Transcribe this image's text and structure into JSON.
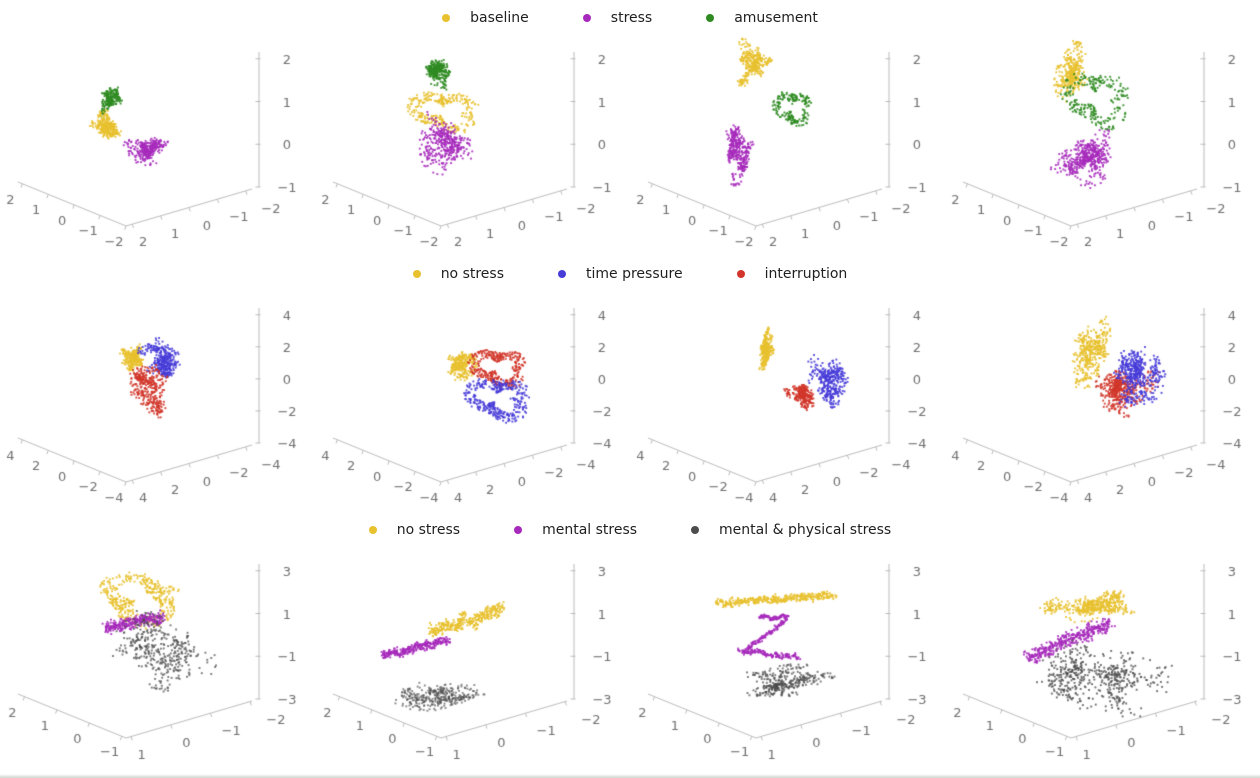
{
  "figure": {
    "background": "#ffffff",
    "axis_line_color": "#bbbbbb",
    "tick_label_color": "#707070",
    "legend_text_color": "#1f1f1f"
  },
  "chart_data": {
    "type": "scatter",
    "projection": "3d",
    "grid": {
      "rows": 3,
      "cols": 4
    },
    "description": "Three rows of four 3D scatter subplots; each row shares one centered legend and identical axis ranges.",
    "rows": [
      {
        "legend": {
          "position": "top-center",
          "entries": [
            {
              "label": "baseline",
              "color": "#E8C12F"
            },
            {
              "label": "stress",
              "color": "#A62ABB"
            },
            {
              "label": "amusement",
              "color": "#2F8B21"
            }
          ]
        },
        "axes": {
          "x_range": [
            -2,
            2
          ],
          "y_range": [
            -2,
            2
          ],
          "z_range": [
            -1,
            2
          ],
          "x_ticks": [
            "2",
            "1",
            "0",
            "−1",
            "−2"
          ],
          "y_ticks": [
            "2",
            "1",
            "0",
            "−1",
            "−2"
          ],
          "z_ticks": [
            "2",
            "1",
            "0",
            "−1"
          ]
        },
        "subplots": [
          {
            "clusters": [
              {
                "series": 2,
                "type": "walk",
                "cx": 112,
                "cy": 64,
                "sx": 11,
                "sy": 20,
                "rot": 10,
                "n": 220
              },
              {
                "series": 0,
                "type": "walk",
                "cx": 108,
                "cy": 88,
                "sx": 18,
                "sy": 17,
                "rot": 0,
                "n": 300
              },
              {
                "series": 1,
                "type": "walk",
                "cx": 142,
                "cy": 115,
                "sx": 26,
                "sy": 17,
                "rot": 18,
                "n": 300
              }
            ]
          },
          {
            "clusters": [
              {
                "series": 2,
                "type": "walk",
                "cx": 120,
                "cy": 38,
                "sx": 22,
                "sy": 18,
                "rot": -15,
                "n": 260
              },
              {
                "series": 0,
                "type": "ring",
                "cx": 128,
                "cy": 75,
                "sx": 30,
                "sy": 24,
                "rot": 0,
                "n": 280
              },
              {
                "series": 1,
                "type": "walk",
                "cx": 132,
                "cy": 112,
                "sx": 30,
                "sy": 36,
                "rot": 0,
                "n": 380
              }
            ]
          },
          {
            "clusters": [
              {
                "series": 0,
                "type": "walk",
                "cx": 122,
                "cy": 34,
                "sx": 22,
                "sy": 28,
                "rot": 15,
                "n": 320
              },
              {
                "series": 2,
                "type": "ring",
                "cx": 162,
                "cy": 72,
                "sx": 16,
                "sy": 20,
                "rot": 0,
                "n": 180
              },
              {
                "series": 1,
                "type": "walk",
                "cx": 110,
                "cy": 110,
                "sx": 17,
                "sy": 40,
                "rot": 8,
                "n": 340
              }
            ]
          },
          {
            "clusters": [
              {
                "series": 0,
                "type": "walk",
                "cx": 124,
                "cy": 45,
                "sx": 21,
                "sy": 40,
                "rot": 0,
                "n": 340
              },
              {
                "series": 2,
                "type": "ring",
                "cx": 150,
                "cy": 62,
                "sx": 28,
                "sy": 32,
                "rot": 0,
                "n": 240
              },
              {
                "series": 1,
                "type": "walk",
                "cx": 140,
                "cy": 114,
                "sx": 42,
                "sy": 38,
                "rot": 0,
                "n": 450
              }
            ]
          }
        ]
      },
      {
        "legend": {
          "position": "top-center",
          "entries": [
            {
              "label": "no stress",
              "color": "#E8C12F"
            },
            {
              "label": "time pressure",
              "color": "#473CD8"
            },
            {
              "label": "interruption",
              "color": "#D2362A"
            }
          ]
        },
        "axes": {
          "x_range": [
            -4,
            4
          ],
          "y_range": [
            -4,
            4
          ],
          "z_range": [
            -4,
            4
          ],
          "x_ticks": [
            "4",
            "2",
            "0",
            "−2",
            "−4"
          ],
          "y_ticks": [
            "4",
            "2",
            "0",
            "−2",
            "−4"
          ],
          "z_ticks": [
            "4",
            "2",
            "0",
            "−2",
            "−4"
          ]
        },
        "subplots": [
          {
            "clusters": [
              {
                "series": 0,
                "type": "walk",
                "cx": 136,
                "cy": 68,
                "sx": 16,
                "sy": 24,
                "rot": 0,
                "n": 280
              },
              {
                "series": 1,
                "type": "walk",
                "cx": 162,
                "cy": 70,
                "sx": 28,
                "sy": 24,
                "rot": 0,
                "n": 340
              },
              {
                "series": 2,
                "type": "walk",
                "cx": 145,
                "cy": 100,
                "sx": 24,
                "sy": 27,
                "rot": 0,
                "n": 340
              }
            ]
          },
          {
            "clusters": [
              {
                "series": 0,
                "type": "walk",
                "cx": 142,
                "cy": 74,
                "sx": 20,
                "sy": 21,
                "rot": 0,
                "n": 280
              },
              {
                "series": 2,
                "type": "ring",
                "cx": 182,
                "cy": 75,
                "sx": 24,
                "sy": 22,
                "rot": 0,
                "n": 320
              },
              {
                "series": 1,
                "type": "ring",
                "cx": 182,
                "cy": 106,
                "sx": 27,
                "sy": 25,
                "rot": 0,
                "n": 340
              }
            ]
          },
          {
            "clusters": [
              {
                "series": 0,
                "type": "walk",
                "cx": 134,
                "cy": 57,
                "sx": 10,
                "sy": 36,
                "rot": 10,
                "n": 300
              },
              {
                "series": 2,
                "type": "walk",
                "cx": 171,
                "cy": 110,
                "sx": 14,
                "sy": 21,
                "rot": -20,
                "n": 240
              },
              {
                "series": 1,
                "type": "walk",
                "cx": 198,
                "cy": 97,
                "sx": 21,
                "sy": 34,
                "rot": 0,
                "n": 340
              }
            ]
          },
          {
            "clusters": [
              {
                "series": 0,
                "type": "walk",
                "cx": 147,
                "cy": 60,
                "sx": 22,
                "sy": 38,
                "rot": 15,
                "n": 380
              },
              {
                "series": 2,
                "type": "walk",
                "cx": 178,
                "cy": 97,
                "sx": 36,
                "sy": 40,
                "rot": 0,
                "n": 450
              },
              {
                "series": 1,
                "type": "walk",
                "cx": 198,
                "cy": 86,
                "sx": 29,
                "sy": 40,
                "rot": 0,
                "n": 450
              }
            ]
          }
        ]
      },
      {
        "legend": {
          "position": "top-center",
          "entries": [
            {
              "label": "no stress",
              "color": "#E8C12F"
            },
            {
              "label": "mental stress",
              "color": "#A62ABB"
            },
            {
              "label": "mental & physical stress",
              "color": "#4C4C4C"
            }
          ]
        },
        "axes": {
          "x_range": [
            -1,
            2
          ],
          "y_range": [
            -2,
            1
          ],
          "z_range": [
            -3,
            3
          ],
          "x_ticks": [
            "2",
            "1",
            "0",
            "−1"
          ],
          "y_ticks": [
            "1",
            "0",
            "−1",
            "−2"
          ],
          "z_ticks": [
            "3",
            "1",
            "−1",
            "−3"
          ]
        },
        "subplots": [
          {
            "clusters": [
              {
                "series": 0,
                "type": "ring",
                "cx": 142,
                "cy": 50,
                "sx": 44,
                "sy": 25,
                "rot": -8,
                "n": 380
              },
              {
                "series": 1,
                "type": "band",
                "cx": 134,
                "cy": 75,
                "sx": 30,
                "sy": 12,
                "rot": -12,
                "n": 300
              },
              {
                "series": 2,
                "type": "walk",
                "cx": 165,
                "cy": 108,
                "sx": 62,
                "sy": 45,
                "rot": 0,
                "n": 380,
                "alpha": 0.75
              }
            ]
          },
          {
            "clusters": [
              {
                "series": 0,
                "type": "band",
                "cx": 152,
                "cy": 73,
                "sx": 38,
                "sy": 13,
                "rot": -18,
                "n": 340
              },
              {
                "series": 1,
                "type": "band",
                "cx": 100,
                "cy": 100,
                "sx": 34,
                "sy": 9,
                "rot": -14,
                "n": 300
              },
              {
                "series": 2,
                "type": "walk",
                "cx": 138,
                "cy": 148,
                "sx": 58,
                "sy": 25,
                "rot": -8,
                "n": 340,
                "alpha": 0.65
              }
            ]
          },
          {
            "clusters": [
              {
                "series": 0,
                "type": "band",
                "cx": 146,
                "cy": 51,
                "sx": 58,
                "sy": 8,
                "rot": -4,
                "n": 380
              },
              {
                "series": 1,
                "type": "band",
                "cx": 144,
                "cy": 69,
                "sx": 14,
                "sy": 5,
                "rot": 0,
                "n": 90
              },
              {
                "series": 1,
                "type": "band",
                "cx": 136,
                "cy": 87,
                "sx": 26,
                "sy": 5,
                "rot": -36,
                "n": 110
              },
              {
                "series": 1,
                "type": "band",
                "cx": 139,
                "cy": 106,
                "sx": 30,
                "sy": 6,
                "rot": 8,
                "n": 150
              },
              {
                "series": 2,
                "type": "walk",
                "cx": 150,
                "cy": 136,
                "sx": 55,
                "sy": 18,
                "rot": -8,
                "n": 340,
                "alpha": 0.75
              }
            ]
          },
          {
            "clusters": [
              {
                "series": 0,
                "type": "walk",
                "cx": 150,
                "cy": 55,
                "sx": 55,
                "sy": 25,
                "rot": -8,
                "n": 450
              },
              {
                "series": 1,
                "type": "band",
                "cx": 124,
                "cy": 92,
                "sx": 45,
                "sy": 15,
                "rot": -22,
                "n": 380
              },
              {
                "series": 2,
                "type": "walk",
                "cx": 160,
                "cy": 125,
                "sx": 68,
                "sy": 50,
                "rot": 0,
                "n": 500,
                "alpha": 0.8
              }
            ]
          }
        ]
      }
    ]
  }
}
